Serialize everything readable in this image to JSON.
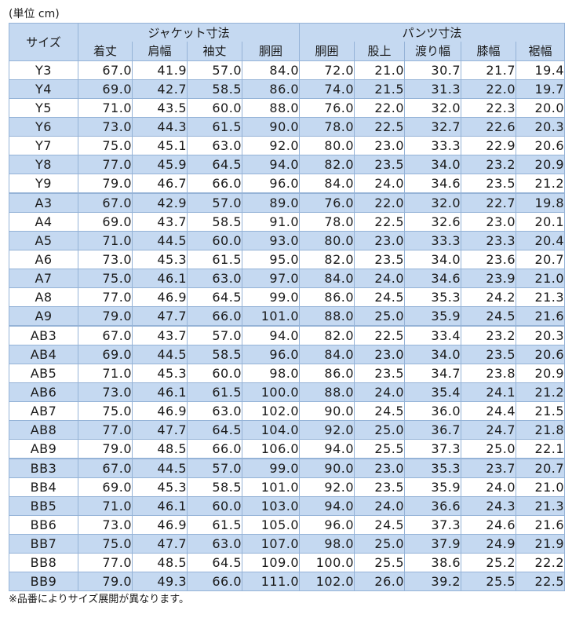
{
  "unit_label": "(単位 cm)",
  "note": "※品番によりサイズ展開が異なります。",
  "headers": {
    "size": "サイズ",
    "jacket_group": "ジャケット寸法",
    "pants_group": "パンツ寸法",
    "columns": [
      "着丈",
      "肩幅",
      "袖丈",
      "胴囲",
      "胴囲",
      "股上",
      "渡り幅",
      "膝幅",
      "裾幅"
    ]
  },
  "rows": [
    [
      "Y3",
      "67.0",
      "41.9",
      "57.0",
      "84.0",
      "72.0",
      "21.0",
      "30.7",
      "21.7",
      "19.4"
    ],
    [
      "Y4",
      "69.0",
      "42.7",
      "58.5",
      "86.0",
      "74.0",
      "21.5",
      "31.3",
      "22.0",
      "19.7"
    ],
    [
      "Y5",
      "71.0",
      "43.5",
      "60.0",
      "88.0",
      "76.0",
      "22.0",
      "32.0",
      "22.3",
      "20.0"
    ],
    [
      "Y6",
      "73.0",
      "44.3",
      "61.5",
      "90.0",
      "78.0",
      "22.5",
      "32.7",
      "22.6",
      "20.3"
    ],
    [
      "Y7",
      "75.0",
      "45.1",
      "63.0",
      "92.0",
      "80.0",
      "23.0",
      "33.3",
      "22.9",
      "20.6"
    ],
    [
      "Y8",
      "77.0",
      "45.9",
      "64.5",
      "94.0",
      "82.0",
      "23.5",
      "34.0",
      "23.2",
      "20.9"
    ],
    [
      "Y9",
      "79.0",
      "46.7",
      "66.0",
      "96.0",
      "84.0",
      "24.0",
      "34.6",
      "23.5",
      "21.2"
    ],
    [
      "A3",
      "67.0",
      "42.9",
      "57.0",
      "89.0",
      "76.0",
      "22.0",
      "32.0",
      "22.7",
      "19.8"
    ],
    [
      "A4",
      "69.0",
      "43.7",
      "58.5",
      "91.0",
      "78.0",
      "22.5",
      "32.6",
      "23.0",
      "20.1"
    ],
    [
      "A5",
      "71.0",
      "44.5",
      "60.0",
      "93.0",
      "80.0",
      "23.0",
      "33.3",
      "23.3",
      "20.4"
    ],
    [
      "A6",
      "73.0",
      "45.3",
      "61.5",
      "95.0",
      "82.0",
      "23.5",
      "34.0",
      "23.6",
      "20.7"
    ],
    [
      "A7",
      "75.0",
      "46.1",
      "63.0",
      "97.0",
      "84.0",
      "24.0",
      "34.6",
      "23.9",
      "21.0"
    ],
    [
      "A8",
      "77.0",
      "46.9",
      "64.5",
      "99.0",
      "86.0",
      "24.5",
      "35.3",
      "24.2",
      "21.3"
    ],
    [
      "A9",
      "79.0",
      "47.7",
      "66.0",
      "101.0",
      "88.0",
      "25.0",
      "35.9",
      "24.5",
      "21.6"
    ],
    [
      "AB3",
      "67.0",
      "43.7",
      "57.0",
      "94.0",
      "82.0",
      "22.5",
      "33.4",
      "23.2",
      "20.3"
    ],
    [
      "AB4",
      "69.0",
      "44.5",
      "58.5",
      "96.0",
      "84.0",
      "23.0",
      "34.0",
      "23.5",
      "20.6"
    ],
    [
      "AB5",
      "71.0",
      "45.3",
      "60.0",
      "98.0",
      "86.0",
      "23.5",
      "34.7",
      "23.8",
      "20.9"
    ],
    [
      "AB6",
      "73.0",
      "46.1",
      "61.5",
      "100.0",
      "88.0",
      "24.0",
      "35.4",
      "24.1",
      "21.2"
    ],
    [
      "AB7",
      "75.0",
      "46.9",
      "63.0",
      "102.0",
      "90.0",
      "24.5",
      "36.0",
      "24.4",
      "21.5"
    ],
    [
      "AB8",
      "77.0",
      "47.7",
      "64.5",
      "104.0",
      "92.0",
      "25.0",
      "36.7",
      "24.7",
      "21.8"
    ],
    [
      "AB9",
      "79.0",
      "48.5",
      "66.0",
      "106.0",
      "94.0",
      "25.5",
      "37.3",
      "25.0",
      "22.1"
    ],
    [
      "BB3",
      "67.0",
      "44.5",
      "57.0",
      "99.0",
      "90.0",
      "23.0",
      "35.3",
      "23.7",
      "20.7"
    ],
    [
      "BB4",
      "69.0",
      "45.3",
      "58.5",
      "101.0",
      "92.0",
      "23.5",
      "35.9",
      "24.0",
      "21.0"
    ],
    [
      "BB5",
      "71.0",
      "46.1",
      "60.0",
      "103.0",
      "94.0",
      "24.0",
      "36.6",
      "24.3",
      "21.3"
    ],
    [
      "BB6",
      "73.0",
      "46.9",
      "61.5",
      "105.0",
      "96.0",
      "24.5",
      "37.3",
      "24.6",
      "21.6"
    ],
    [
      "BB7",
      "75.0",
      "47.7",
      "63.0",
      "107.0",
      "98.0",
      "25.0",
      "37.9",
      "24.9",
      "21.9"
    ],
    [
      "BB8",
      "77.0",
      "48.5",
      "64.5",
      "109.0",
      "100.0",
      "25.5",
      "38.6",
      "25.2",
      "22.2"
    ],
    [
      "BB9",
      "79.0",
      "49.3",
      "66.0",
      "111.0",
      "102.0",
      "26.0",
      "39.2",
      "25.5",
      "22.5"
    ]
  ],
  "colors": {
    "header_fill": "#c5d9f1",
    "stripe_fill": "#c5d9f1",
    "grid_line": "#95b3d7"
  }
}
